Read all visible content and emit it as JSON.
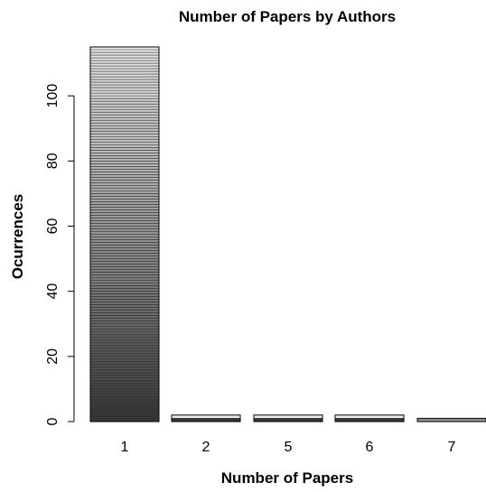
{
  "chart_data": {
    "type": "bar",
    "title": "Number of Papers by Authors",
    "xlabel": "Number of Papers",
    "ylabel": "Ocurrences",
    "categories": [
      "1",
      "2",
      "5",
      "6",
      "7"
    ],
    "values": [
      115,
      2,
      2,
      2,
      1
    ],
    "ylim": [
      0,
      115
    ],
    "yticks": [
      0,
      20,
      40,
      60,
      80,
      100
    ],
    "grid": false,
    "legend": "none",
    "bar_fill": "horizontal gray gradient stripes (dark at bottom, light at top)"
  }
}
